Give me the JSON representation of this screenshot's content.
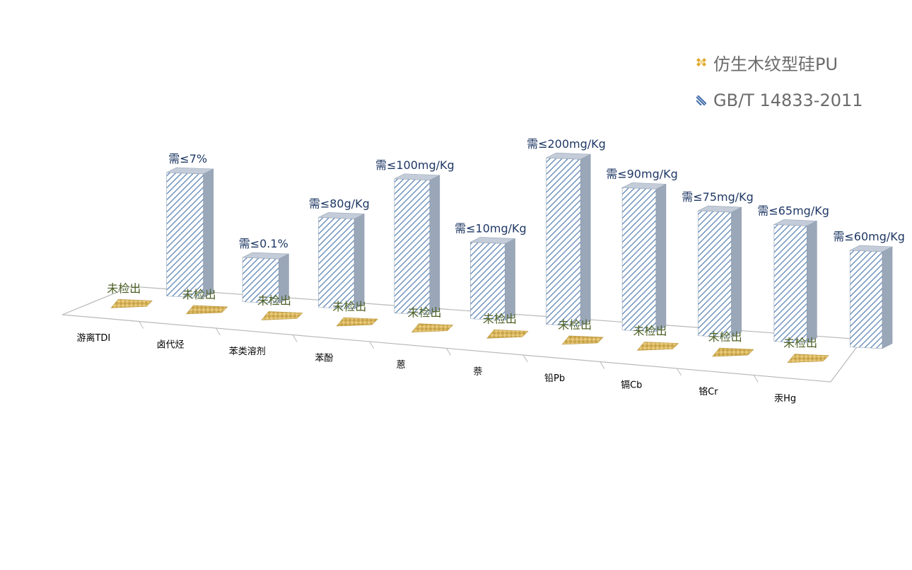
{
  "legend": {
    "items": [
      {
        "label": "仿生木纹型硅PU",
        "color": "#e0bf5c",
        "icon": "gold-diamond-swatch-icon"
      },
      {
        "label": "GB/T 14833-2011",
        "color": "#4a6fa5",
        "icon": "blue-hatch-swatch-icon"
      }
    ]
  },
  "chart_data": {
    "type": "bar",
    "style": "3d-clustered",
    "title": "",
    "categories": [
      "游离TDI",
      "卤代烃",
      "苯类溶剂",
      "苯酚",
      "蒽",
      "萘",
      "铅Pb",
      "镉Cb",
      "铬Cr",
      "汞Hg"
    ],
    "series": [
      {
        "name": "仿生木纹型硅PU",
        "color": "#e0bf5c",
        "values": [
          0,
          0,
          0,
          0,
          0,
          0,
          0,
          0,
          0,
          0
        ],
        "labels": [
          "未检出",
          "未检出",
          "未检出",
          "未检出",
          "未检出",
          "未检出",
          "未检出",
          "未检出",
          "未检出",
          "未检出"
        ]
      },
      {
        "name": "GB/T 14833-2011",
        "color": "#a9b7c9",
        "relative_heights": [
          0.92,
          0.33,
          0.67,
          1.0,
          0.57,
          1.24,
          1.06,
          0.93,
          0.87,
          0.72
        ],
        "labels": [
          "需≤7%",
          "需≤0.1%",
          "需≤80g/Kg",
          "需≤100mg/Kg",
          "需≤10mg/Kg",
          "需≤200mg/Kg",
          "需≤90mg/Kg",
          "需≤75mg/Kg",
          "需≤65mg/Kg",
          "需≤60mg/Kg"
        ]
      }
    ],
    "legend_position": "top-right",
    "grid": false
  }
}
